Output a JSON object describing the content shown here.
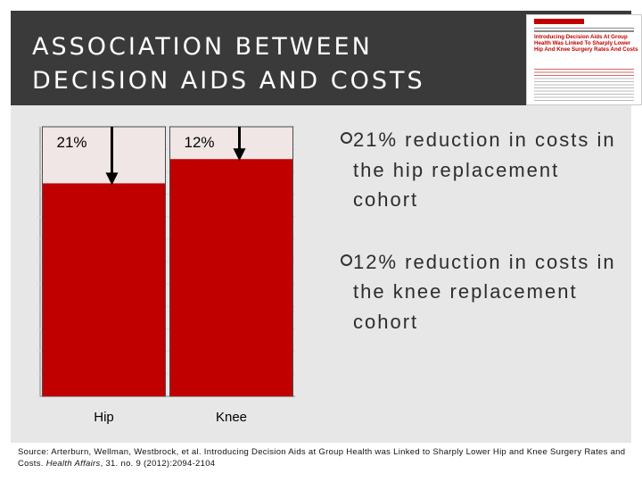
{
  "header": {
    "title": "ASSOCIATION BETWEEN\nDECISION AIDS AND COSTS",
    "article_thumbnail": {
      "title": "Introducing Decision Aids At Group Health Was Linked To Sharply Lower Hip And Knee Surgery Rates And Costs"
    }
  },
  "chart_data": {
    "type": "bar",
    "categories": [
      "Hip",
      "Knee"
    ],
    "values": [
      79,
      88
    ],
    "reduction_labels": [
      "21%",
      "12%"
    ],
    "ylim": [
      0,
      100
    ],
    "grid": true,
    "bar_color": "#c00000",
    "baseline_color": "#f1e6e6",
    "title": "",
    "xlabel": "",
    "ylabel": ""
  },
  "bullets": [
    "21% reduction in costs in the hip replacement cohort",
    "12% reduction in costs in the knee replacement cohort"
  ],
  "source": {
    "text": "Source: Arterburn, Wellman, Westbrock, et al. Introducing Decision Aids at Group Health was Linked to Sharply Lower Hip and Knee Surgery Rates and Costs.",
    "journal": "Health Affairs",
    "citation": ", 31. no. 9 (2012):2094-2104"
  },
  "colors": {
    "header_bg": "#3a3a3a",
    "content_bg": "#e7e7e7",
    "accent": "#c00000"
  }
}
